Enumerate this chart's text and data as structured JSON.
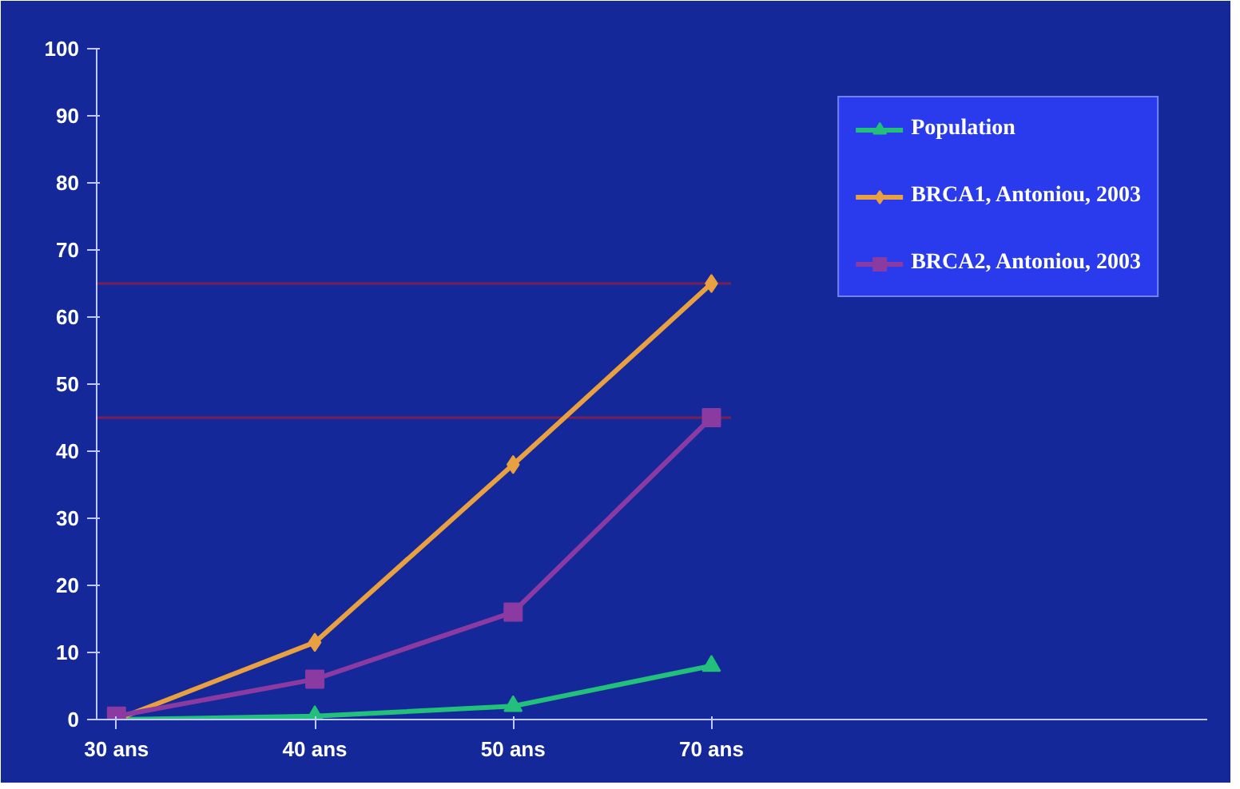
{
  "chart_data": {
    "type": "line",
    "categories": [
      "30 ans",
      "40 ans",
      "50 ans",
      "70 ans"
    ],
    "series": [
      {
        "name": "Population",
        "color": "#22c07a",
        "marker": "triangle",
        "values": [
          0,
          0.5,
          2,
          8
        ]
      },
      {
        "name": "BRCA1, Antoniou, 2003",
        "color": "#e8a040",
        "marker": "diamond",
        "values": [
          0,
          11.5,
          38,
          65
        ]
      },
      {
        "name": "BRCA2, Antoniou, 2003",
        "color": "#8a3aa0",
        "marker": "square",
        "values": [
          0.5,
          6,
          16,
          45
        ]
      }
    ],
    "ylim": [
      0,
      100
    ],
    "yticks": [
      0,
      10,
      20,
      30,
      40,
      50,
      60,
      70,
      80,
      90,
      100
    ],
    "ref_lines": [
      {
        "axis": "y",
        "value": 65,
        "color": "#7a2050",
        "line_style": "solid"
      },
      {
        "axis": "y",
        "value": 45,
        "color": "#7a2050",
        "line_style": "solid"
      }
    ],
    "grid": false,
    "legend": "right",
    "line_style": "solid"
  }
}
